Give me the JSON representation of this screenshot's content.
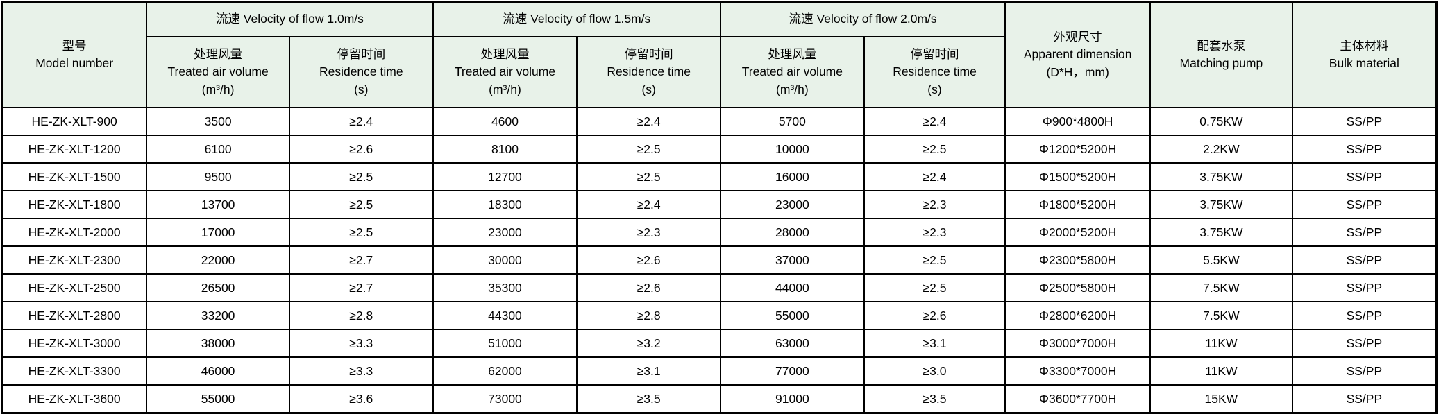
{
  "colors": {
    "header_bg": "#e8f2e9",
    "border": "#000000",
    "text": "#000000"
  },
  "chart_data": {
    "type": "table",
    "header": {
      "model": {
        "zh": "型号",
        "en": "Model number"
      },
      "velocity_groups": [
        {
          "label": "流速 Velocity of flow 1.0m/s"
        },
        {
          "label": "流速 Velocity of flow 1.5m/s"
        },
        {
          "label": "流速 Velocity of flow 2.0m/s"
        }
      ],
      "air_volume": {
        "zh": "处理风量",
        "en": "Treated air volume",
        "unit": "(m³/h)"
      },
      "residence_time": {
        "zh": "停留时间",
        "en": "Residence time",
        "unit": "(s)"
      },
      "dimension": {
        "zh": "外观尺寸",
        "en": "Apparent dimension",
        "unit": "(D*H，mm)"
      },
      "pump": {
        "zh": "配套水泵",
        "en": "Matching pump"
      },
      "material": {
        "zh": "主体材料",
        "en": "Bulk material"
      }
    },
    "rows": [
      {
        "model": "HE-ZK-XLT-900",
        "v10_air": "3500",
        "v10_res": "≥2.4",
        "v15_air": "4600",
        "v15_res": "≥2.4",
        "v20_air": "5700",
        "v20_res": "≥2.4",
        "dim": "Φ900*4800H",
        "pump": "0.75KW",
        "material": "SS/PP"
      },
      {
        "model": "HE-ZK-XLT-1200",
        "v10_air": "6100",
        "v10_res": "≥2.6",
        "v15_air": "8100",
        "v15_res": "≥2.5",
        "v20_air": "10000",
        "v20_res": "≥2.5",
        "dim": "Φ1200*5200H",
        "pump": "2.2KW",
        "material": "SS/PP"
      },
      {
        "model": "HE-ZK-XLT-1500",
        "v10_air": "9500",
        "v10_res": "≥2.5",
        "v15_air": "12700",
        "v15_res": "≥2.5",
        "v20_air": "16000",
        "v20_res": "≥2.4",
        "dim": "Φ1500*5200H",
        "pump": "3.75KW",
        "material": "SS/PP"
      },
      {
        "model": "HE-ZK-XLT-1800",
        "v10_air": "13700",
        "v10_res": "≥2.5",
        "v15_air": "18300",
        "v15_res": "≥2.4",
        "v20_air": "23000",
        "v20_res": "≥2.3",
        "dim": "Φ1800*5200H",
        "pump": "3.75KW",
        "material": "SS/PP"
      },
      {
        "model": "HE-ZK-XLT-2000",
        "v10_air": "17000",
        "v10_res": "≥2.5",
        "v15_air": "23000",
        "v15_res": "≥2.3",
        "v20_air": "28000",
        "v20_res": "≥2.3",
        "dim": "Φ2000*5200H",
        "pump": "3.75KW",
        "material": "SS/PP"
      },
      {
        "model": "HE-ZK-XLT-2300",
        "v10_air": "22000",
        "v10_res": "≥2.7",
        "v15_air": "30000",
        "v15_res": "≥2.6",
        "v20_air": "37000",
        "v20_res": "≥2.5",
        "dim": "Φ2300*5800H",
        "pump": "5.5KW",
        "material": "SS/PP"
      },
      {
        "model": "HE-ZK-XLT-2500",
        "v10_air": "26500",
        "v10_res": "≥2.7",
        "v15_air": "35300",
        "v15_res": "≥2.6",
        "v20_air": "44000",
        "v20_res": "≥2.5",
        "dim": "Φ2500*5800H",
        "pump": "7.5KW",
        "material": "SS/PP"
      },
      {
        "model": "HE-ZK-XLT-2800",
        "v10_air": "33200",
        "v10_res": "≥2.8",
        "v15_air": "44300",
        "v15_res": "≥2.8",
        "v20_air": "55000",
        "v20_res": "≥2.6",
        "dim": "Φ2800*6200H",
        "pump": "7.5KW",
        "material": "SS/PP"
      },
      {
        "model": "HE-ZK-XLT-3000",
        "v10_air": "38000",
        "v10_res": "≥3.3",
        "v15_air": "51000",
        "v15_res": "≥3.2",
        "v20_air": "63000",
        "v20_res": "≥3.1",
        "dim": "Φ3000*7000H",
        "pump": "11KW",
        "material": "SS/PP"
      },
      {
        "model": "HE-ZK-XLT-3300",
        "v10_air": "46000",
        "v10_res": "≥3.3",
        "v15_air": "62000",
        "v15_res": "≥3.1",
        "v20_air": "77000",
        "v20_res": "≥3.0",
        "dim": "Φ3300*7000H",
        "pump": "11KW",
        "material": "SS/PP"
      },
      {
        "model": "HE-ZK-XLT-3600",
        "v10_air": "55000",
        "v10_res": "≥3.6",
        "v15_air": "73000",
        "v15_res": "≥3.5",
        "v20_air": "91000",
        "v20_res": "≥3.5",
        "dim": "Φ3600*7700H",
        "pump": "15KW",
        "material": "SS/PP"
      }
    ]
  }
}
